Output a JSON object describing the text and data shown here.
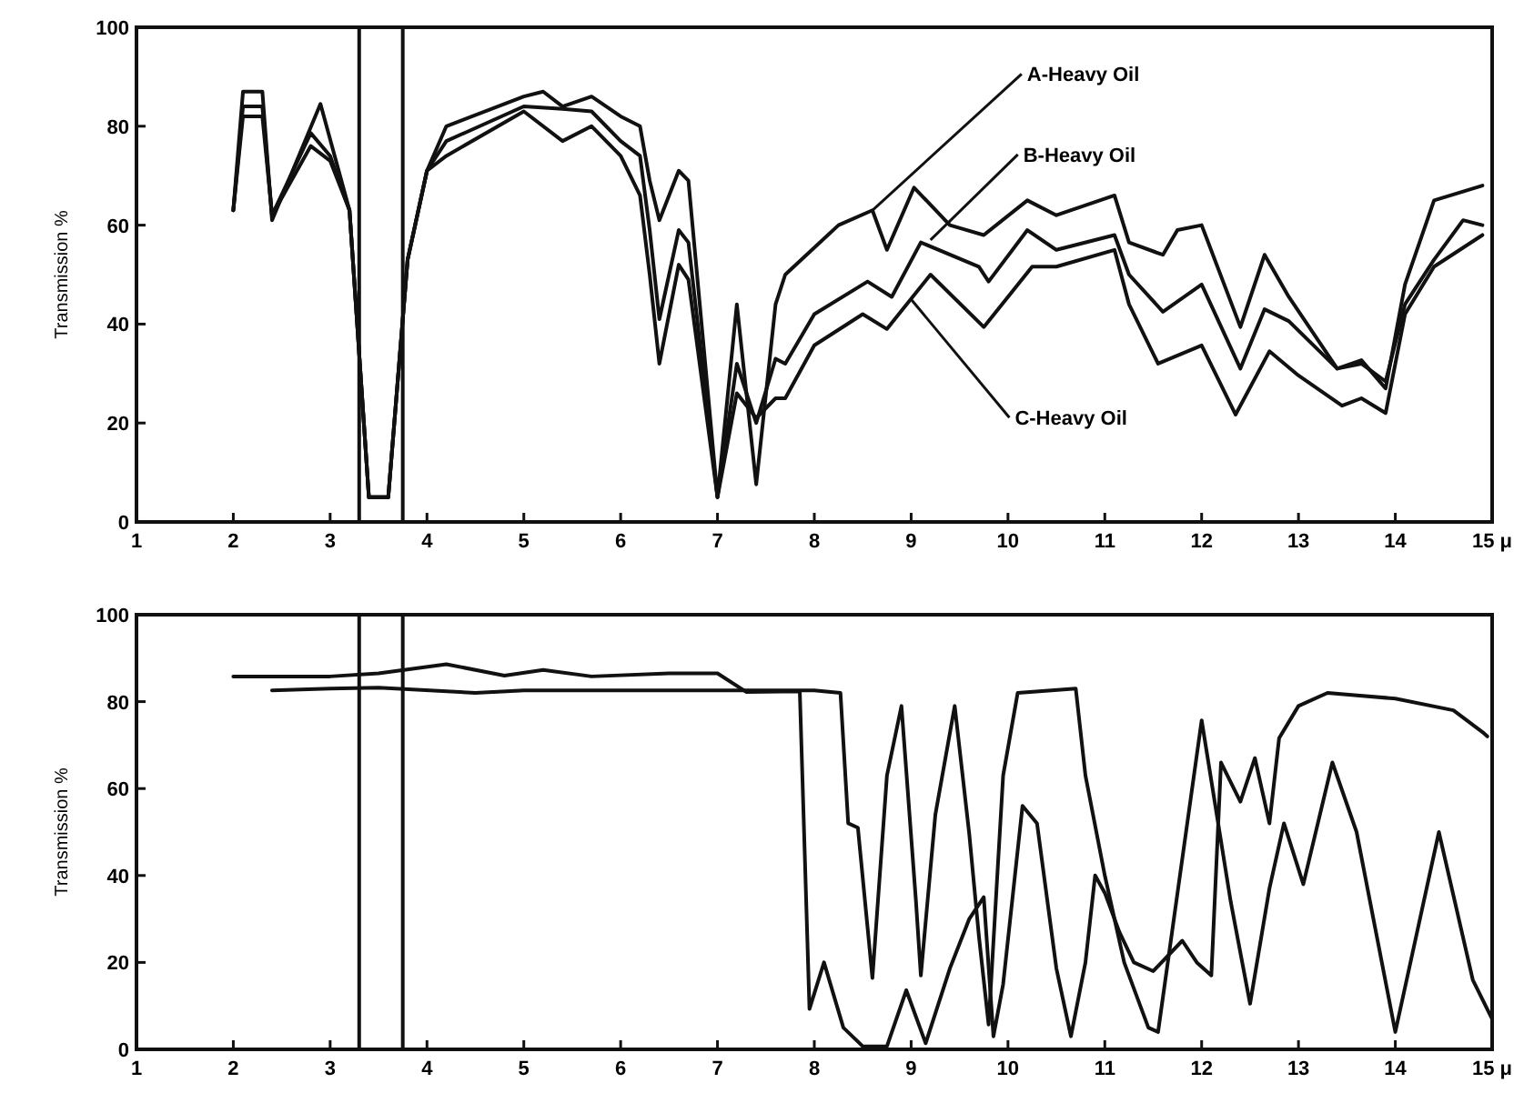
{
  "chart_data": [
    {
      "type": "line",
      "ylabel": "Transmission %",
      "xlim": [
        1,
        15
      ],
      "ylim": [
        0,
        100
      ],
      "xticks": [
        1,
        2,
        3,
        4,
        5,
        6,
        7,
        8,
        9,
        10,
        11,
        12,
        13,
        14,
        {
          "value": 15,
          "label": "15 μ"
        }
      ],
      "yticks": [
        0,
        20,
        40,
        60,
        80,
        100
      ],
      "grid": false,
      "series": [
        {
          "color": "#111111",
          "x": [
            2,
            2.1,
            2.3,
            2.4,
            2.9,
            3.2,
            3.4,
            3.6,
            3.8,
            4.0,
            4.2,
            5,
            5.2,
            5.4,
            5.7,
            6.0,
            6.2,
            6.3,
            6.4,
            6.6,
            6.7,
            7.0,
            7.2,
            7.4,
            7.6,
            7.7,
            8.25,
            8.6,
            8.75,
            9.03,
            9.4,
            9.75,
            10.2,
            10.5,
            11.1,
            11.25,
            11.6,
            11.75,
            12.0,
            12.4,
            12.65,
            12.9,
            13.4,
            13.65,
            13.9,
            14.1,
            14.4,
            14.9
          ],
          "values": [
            63,
            87,
            87,
            61,
            84.5,
            63,
            5,
            5,
            53,
            71,
            80,
            86,
            87,
            84,
            86,
            82,
            80,
            69,
            61,
            71,
            69,
            5,
            44,
            7.6,
            44,
            50,
            60,
            63,
            55,
            67.6,
            60,
            58,
            65,
            62,
            66,
            56.5,
            54,
            59,
            60,
            39.4,
            54,
            45.5,
            31,
            32.7,
            27,
            48,
            65,
            68
          ]
        },
        {
          "color": "#111111",
          "x": [
            2,
            2.1,
            2.3,
            2.4,
            2.8,
            3.0,
            3.2,
            3.4,
            3.6,
            3.8,
            4.0,
            4.2,
            5,
            5.4,
            5.7,
            6.0,
            6.2,
            6.3,
            6.4,
            6.6,
            6.7,
            7.0,
            7.2,
            7.4,
            7.6,
            7.7,
            8.0,
            8.55,
            8.8,
            9.1,
            9.7,
            9.8,
            10.2,
            10.5,
            11.1,
            11.25,
            11.6,
            12.0,
            12.4,
            12.65,
            12.9,
            13.4,
            13.65,
            13.9,
            14.1,
            14.4,
            14.7,
            14.9
          ],
          "values": [
            63,
            84,
            84,
            62,
            78.6,
            74,
            63,
            5,
            5,
            53,
            71,
            77,
            84,
            83.5,
            83,
            77,
            74,
            59,
            41,
            59,
            56.5,
            5,
            32,
            20,
            33,
            32,
            42,
            48.6,
            45.5,
            56.5,
            51.6,
            48.6,
            59,
            55,
            58,
            50,
            42.5,
            48,
            31,
            43,
            40.6,
            31,
            32,
            28.4,
            44,
            53,
            61,
            60
          ]
        },
        {
          "color": "#111111",
          "x": [
            2,
            2.1,
            2.3,
            2.4,
            2.8,
            3.0,
            3.2,
            3.4,
            3.6,
            3.8,
            4.0,
            4.2,
            5,
            5.4,
            5.7,
            6.0,
            6.2,
            6.3,
            6.4,
            6.6,
            6.7,
            7.0,
            7.2,
            7.4,
            7.6,
            7.7,
            8.0,
            8.5,
            8.75,
            9.2,
            9.75,
            10.25,
            10.5,
            11.1,
            11.25,
            11.55,
            12.0,
            12.35,
            12.7,
            13.0,
            13.45,
            13.65,
            13.9,
            14.1,
            14.4,
            14.9
          ],
          "values": [
            63,
            82,
            82,
            62,
            76,
            73,
            63,
            5,
            5,
            53,
            71,
            74,
            83,
            77,
            80,
            74,
            66,
            50,
            32,
            52,
            49,
            5,
            26,
            21,
            25,
            25,
            35.7,
            42,
            39,
            50,
            39.4,
            51.6,
            51.6,
            55,
            44,
            32,
            35.7,
            21.7,
            34.5,
            29.6,
            23.5,
            25,
            22,
            42,
            51.6,
            58
          ]
        }
      ],
      "ref_lines": [
        {
          "axis": "x",
          "value": 3.3,
          "color": "#111111"
        },
        {
          "axis": "x",
          "value": 3.75,
          "color": "#111111"
        }
      ],
      "annotations": [
        {
          "text": "A-Heavy Oil",
          "x": 8.6,
          "y": 63
        },
        {
          "text": "B-Heavy Oil",
          "x": 9.2,
          "y": 57
        },
        {
          "text": "C-Heavy Oil",
          "x": 9.0,
          "y": 45
        }
      ]
    },
    {
      "type": "line",
      "ylabel": "Transmission %",
      "xlim": [
        1,
        15
      ],
      "ylim": [
        0,
        100
      ],
      "xticks": [
        1,
        2,
        3,
        4,
        5,
        6,
        7,
        8,
        9,
        10,
        11,
        12,
        13,
        14,
        {
          "value": 15,
          "label": "15 μ"
        }
      ],
      "yticks": [
        0,
        20,
        40,
        60,
        80,
        100
      ],
      "grid": false,
      "series": [
        {
          "color": "#111111",
          "x": [
            2,
            3,
            3.5,
            4.2,
            4.8,
            5.2,
            5.7,
            6.5,
            7.0,
            7.3,
            7.85,
            7.95,
            8.1,
            8.3,
            8.5,
            8.75,
            8.95,
            9.15,
            9.4,
            9.6,
            9.75,
            9.85,
            9.95,
            10.15,
            10.3,
            10.5,
            10.65,
            10.8,
            10.9,
            11.0,
            11.15,
            11.3,
            11.5,
            11.8,
            11.95,
            12.1,
            12.2,
            12.4,
            12.55,
            12.7,
            12.8,
            13.0,
            13.3,
            14.0,
            14.6,
            14.9,
            14.95
          ],
          "values": [
            85.8,
            85.8,
            86.5,
            88.6,
            86,
            87.3,
            85.8,
            86.5,
            86.5,
            82.2,
            82.4,
            9.3,
            20,
            5,
            0.7,
            0.7,
            13.6,
            1.4,
            18.6,
            30,
            35,
            3,
            15,
            56,
            52,
            18.6,
            3,
            20,
            40,
            36,
            27,
            20,
            18,
            25,
            20,
            17,
            66,
            57,
            67,
            52,
            71.6,
            79,
            82,
            80.7,
            78,
            73,
            72
          ]
        },
        {
          "color": "#111111",
          "x": [
            2.4,
            3,
            3.5,
            4.5,
            5,
            6,
            7,
            8,
            8.27,
            8.35,
            8.45,
            8.55,
            8.6,
            8.75,
            8.9,
            9.05,
            9.1,
            9.25,
            9.45,
            9.6,
            9.7,
            9.8,
            9.95,
            10.1,
            10.7,
            10.8,
            11.0,
            11.2,
            11.45,
            11.55,
            12.0,
            12.3,
            12.5,
            12.7,
            12.85,
            13.05,
            13.35,
            13.6,
            14.0,
            14.45,
            14.8,
            15
          ],
          "values": [
            82.6,
            83,
            83.2,
            82,
            82.6,
            82.6,
            82.6,
            82.6,
            82,
            52,
            51,
            28,
            16.4,
            63,
            79,
            34,
            17,
            54,
            79,
            49.6,
            26,
            5.7,
            63,
            82,
            83,
            63,
            40,
            20,
            5,
            4,
            75.7,
            34,
            10.5,
            37,
            52,
            38,
            66,
            50,
            4,
            50,
            16,
            7
          ]
        }
      ],
      "ref_lines": [
        {
          "axis": "x",
          "value": 3.3,
          "color": "#111111"
        },
        {
          "axis": "x",
          "value": 3.75,
          "color": "#111111"
        }
      ]
    }
  ]
}
